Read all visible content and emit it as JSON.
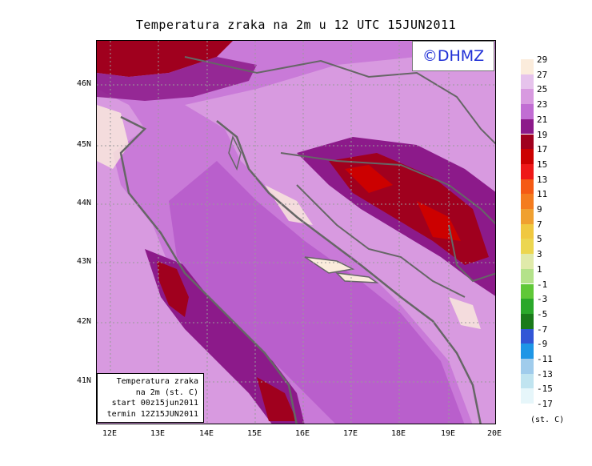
{
  "title": "Temperatura zraka na 2m u 12 UTC 15JUN2011",
  "logo": "©DHMZ",
  "info": {
    "line1": "Temperatura zraka",
    "line2": "na 2m (st. C)",
    "line3": "start 00z15jun2011",
    "line4": "termin 12Z15JUN2011"
  },
  "lat_labels": [
    "46N",
    "45N",
    "44N",
    "43N",
    "42N",
    "41N"
  ],
  "lon_labels": [
    "12E",
    "13E",
    "14E",
    "15E",
    "16E",
    "17E",
    "18E",
    "19E",
    "20E"
  ],
  "legend": {
    "unit": "(st. C)",
    "levels": [
      "29",
      "27",
      "25",
      "23",
      "21",
      "19",
      "17",
      "15",
      "13",
      "11",
      "9",
      "7",
      "5",
      "3",
      "1",
      "-1",
      "-3",
      "-5",
      "-7",
      "-9",
      "-11",
      "-13",
      "-15",
      "-17"
    ],
    "colors": [
      "#fbecdc",
      "#e6c3ec",
      "#d89ae0",
      "#c16dd3",
      "#8c1a8a",
      "#a0001e",
      "#cc0000",
      "#ee1818",
      "#f55a14",
      "#f47c1e",
      "#f0a030",
      "#f0c840",
      "#ecd650",
      "#e0eaaa",
      "#b4e28a",
      "#60c838",
      "#2aa82a",
      "#1a7a1a",
      "#3256d6",
      "#1e96e6",
      "#a0ccec",
      "#c0e4f0",
      "#e6f6fa"
    ]
  },
  "palette": {
    "sea": "#c97ad8",
    "inland": "#d89ae0",
    "hot": "#a0001e",
    "warm": "#8c1a8a",
    "light": "#fbecdc",
    "coast": "#666666"
  }
}
